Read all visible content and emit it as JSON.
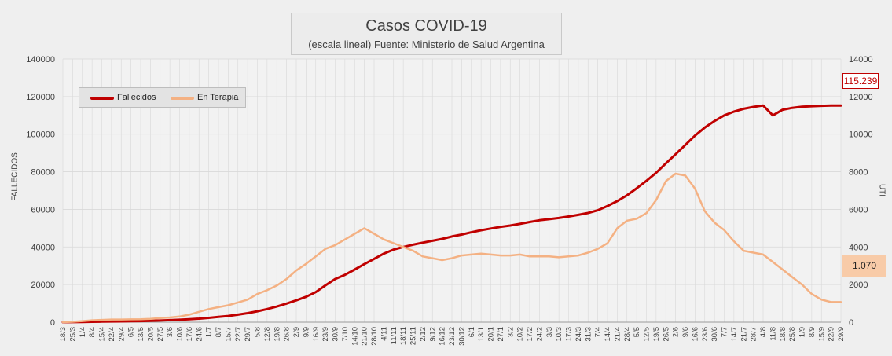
{
  "chart_data": {
    "type": "line",
    "title": "Casos COVID-19",
    "subtitle": "(escala lineal) Fuente: Ministerio de Salud Argentina",
    "ylabel": "FALLECIDOS",
    "y2label": "UTI",
    "ylim": [
      0,
      140000
    ],
    "y2lim": [
      0,
      14000
    ],
    "yticks": [
      "0",
      "20000",
      "40000",
      "60000",
      "80000",
      "100000",
      "120000",
      "140000"
    ],
    "y2ticks": [
      "0",
      "2000",
      "4000",
      "6000",
      "8000",
      "10000",
      "12000",
      "14000"
    ],
    "legend_position": "top-left",
    "grid": true,
    "x": [
      "18/3",
      "25/3",
      "1/4",
      "8/4",
      "15/4",
      "22/4",
      "29/4",
      "6/5",
      "13/5",
      "20/5",
      "27/5",
      "3/6",
      "10/6",
      "17/6",
      "24/6",
      "1/7",
      "8/7",
      "15/7",
      "22/7",
      "29/7",
      "5/8",
      "12/8",
      "19/8",
      "26/8",
      "2/9",
      "9/9",
      "16/9",
      "23/9",
      "30/9",
      "7/10",
      "14/10",
      "21/10",
      "28/10",
      "4/11",
      "11/11",
      "18/11",
      "25/11",
      "2/12",
      "9/12",
      "16/12",
      "23/12",
      "30/12",
      "6/1",
      "13/1",
      "20/1",
      "27/1",
      "3/2",
      "10/2",
      "17/2",
      "24/2",
      "3/3",
      "10/3",
      "17/3",
      "24/3",
      "31/3",
      "7/4",
      "14/4",
      "21/4",
      "28/4",
      "5/5",
      "12/5",
      "19/5",
      "26/5",
      "2/6",
      "9/6",
      "16/6",
      "23/6",
      "30/6",
      "7/7",
      "14/7",
      "21/7",
      "28/7",
      "4/8",
      "11/8",
      "18/8",
      "25/8",
      "1/9",
      "8/9",
      "15/9",
      "22/9",
      "29/9"
    ],
    "series": [
      {
        "name": "Fallecidos",
        "axis": "left",
        "color": "#c00000",
        "values": [
          0,
          30,
          130,
          200,
          280,
          360,
          420,
          500,
          600,
          700,
          880,
          1100,
          1300,
          1600,
          1900,
          2300,
          2800,
          3300,
          4000,
          4800,
          5800,
          7000,
          8300,
          9900,
          11600,
          13500,
          16000,
          19600,
          23000,
          25200,
          28000,
          30900,
          33700,
          36500,
          38600,
          40000,
          41200,
          42300,
          43300,
          44300,
          45600,
          46600,
          47800,
          48900,
          49800,
          50700,
          51400,
          52300,
          53300,
          54200,
          54800,
          55400,
          56200,
          57100,
          58100,
          59500,
          61800,
          64400,
          67500,
          71200,
          75200,
          79500,
          84500,
          89300,
          94300,
          99300,
          103500,
          107000,
          110000,
          112000,
          113500,
          114500,
          115239,
          110000,
          113000,
          114000,
          114600,
          114900,
          115100,
          115200,
          115239
        ]
      },
      {
        "name": "En Terapia",
        "axis": "right",
        "color": "#f4b183",
        "values": [
          0,
          20,
          60,
          100,
          120,
          140,
          140,
          150,
          160,
          180,
          220,
          250,
          300,
          400,
          550,
          700,
          800,
          900,
          1050,
          1200,
          1500,
          1700,
          1950,
          2300,
          2750,
          3100,
          3500,
          3900,
          4100,
          4400,
          4700,
          5000,
          4700,
          4400,
          4200,
          4000,
          3800,
          3500,
          3400,
          3300,
          3400,
          3550,
          3600,
          3650,
          3600,
          3550,
          3550,
          3600,
          3500,
          3500,
          3500,
          3450,
          3500,
          3550,
          3700,
          3900,
          4200,
          5000,
          5400,
          5500,
          5800,
          6500,
          7500,
          7900,
          7800,
          7100,
          5900,
          5300,
          4900,
          4300,
          3800,
          3700,
          3600,
          3200,
          2800,
          2400,
          2000,
          1500,
          1200,
          1070,
          1070
        ]
      }
    ]
  },
  "badges": {
    "fallecidos_last": "115.239",
    "terapia_last": "1.070"
  },
  "colors": {
    "background": "#efefef",
    "plot_background": "#f2f2f2",
    "gridline": "#d9d9d9",
    "fallecidos": "#c00000",
    "terapia": "#f4b183"
  }
}
